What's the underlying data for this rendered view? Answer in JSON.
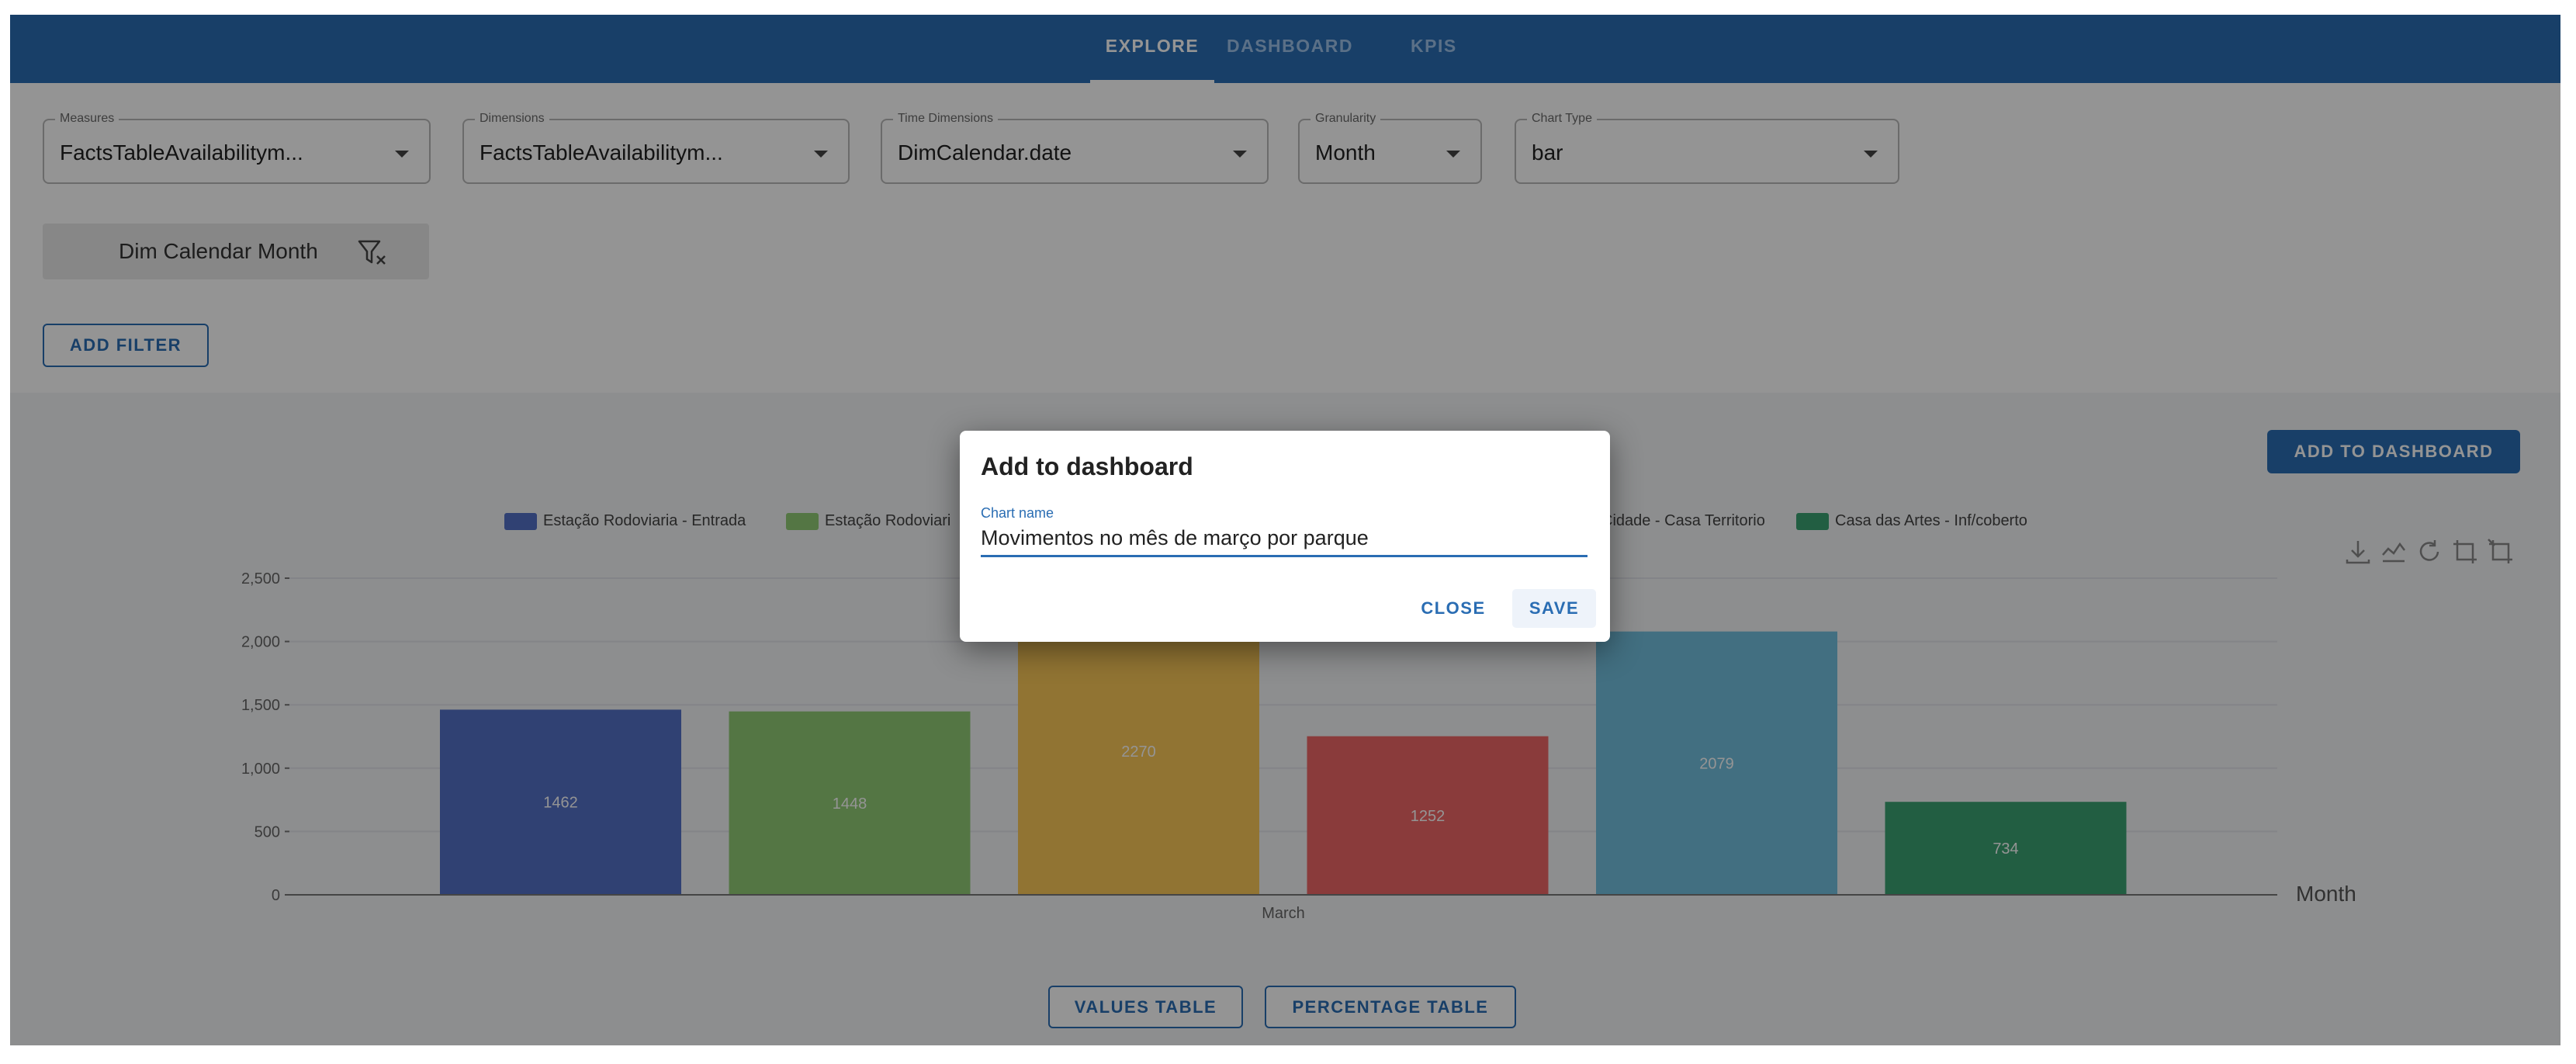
{
  "nav": {
    "tabs": [
      {
        "label": "EXPLORE"
      },
      {
        "label": "DASHBOARD"
      },
      {
        "label": "KPIS"
      }
    ]
  },
  "query": {
    "measures": {
      "label": "Measures",
      "value": "FactsTableAvailabilitym..."
    },
    "dimensions": {
      "label": "Dimensions",
      "value": "FactsTableAvailabilitym..."
    },
    "time_dimensions": {
      "label": "Time Dimensions",
      "value": "DimCalendar.date"
    },
    "granularity": {
      "label": "Granularity",
      "value": "Month"
    },
    "chart_type": {
      "label": "Chart Type",
      "value": "bar"
    }
  },
  "filter_chip": {
    "label": "Dim Calendar Month",
    "icon": "filter-clear-icon"
  },
  "buttons": {
    "add_filter": "ADD FILTER",
    "add_to_dashboard": "ADD TO DASHBOARD",
    "values_table": "VALUES TABLE",
    "percentage_table": "PERCENTAGE TABLE"
  },
  "toolbox": {
    "icons": [
      "download-icon",
      "data-view-icon",
      "restore-icon",
      "zoom-icon",
      "zoom-reset-icon"
    ]
  },
  "chart_data": {
    "type": "bar",
    "categories": [
      "March"
    ],
    "xlabel": "Month",
    "ylabel": "",
    "ylim": [
      0,
      2500
    ],
    "yticks": [
      "0",
      "500",
      "1,000",
      "1,500",
      "2,000",
      "2,500"
    ],
    "grid": true,
    "legend_position": "top",
    "series": [
      {
        "name": "Estação Rodoviaria - Entrada",
        "values": [
          1462
        ],
        "color": "#5470c6"
      },
      {
        "name": "Estação Rodoviari",
        "values": [
          1448
        ],
        "color": "#91cc75"
      },
      {
        "name": "",
        "values": [
          2270
        ],
        "color": "#fac858"
      },
      {
        "name": "",
        "values": [
          1252
        ],
        "color": "#ee6666"
      },
      {
        "name": "Cidade - Casa Territorio",
        "values": [
          2079
        ],
        "color": "#73c0de"
      },
      {
        "name": "Casa das Artes - Inf/coberto",
        "values": [
          734
        ],
        "color": "#3ba272"
      }
    ],
    "data_labels": [
      "1462",
      "1448",
      "2270",
      "1252",
      "2079",
      "734"
    ]
  },
  "dialog": {
    "title": "Add to dashboard",
    "field_label": "Chart name",
    "field_value": "Movimentos no mês de março por parque",
    "close": "CLOSE",
    "save": "SAVE"
  }
}
